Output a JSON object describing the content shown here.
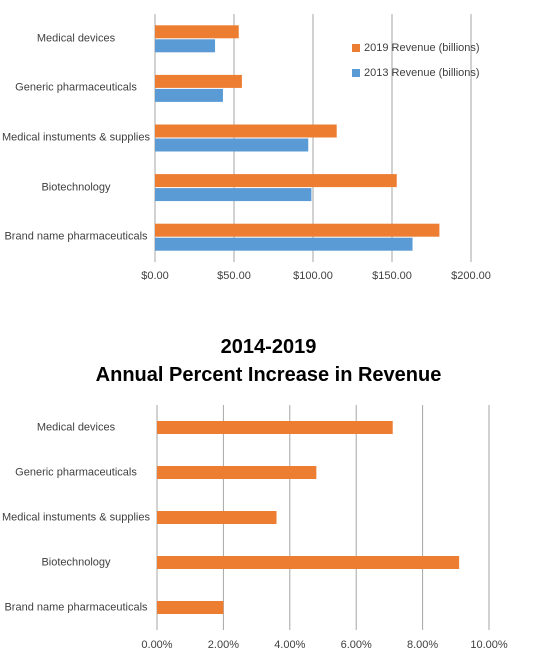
{
  "chart_data": [
    {
      "type": "hbar",
      "categories": [
        "Medical devices",
        "Generic pharmaceuticals",
        "Medical instuments & supplies",
        "Biotechnology",
        "Brand name pharmaceuticals"
      ],
      "series": [
        {
          "name": "2019 Revenue (billions)",
          "color": "#ed7d31",
          "values": [
            53,
            55,
            115,
            153,
            180
          ]
        },
        {
          "name": "2013 Revenue (billions)",
          "color": "#5b9bd5",
          "values": [
            38,
            43,
            97,
            99,
            163
          ]
        }
      ],
      "xlim": [
        0,
        200
      ],
      "xticks": [
        {
          "value": 0,
          "label": "$0.00"
        },
        {
          "value": 50,
          "label": "$50.00"
        },
        {
          "value": 100,
          "label": "$100.00"
        },
        {
          "value": 150,
          "label": "$150.00"
        },
        {
          "value": 200,
          "label": "$200.00"
        }
      ],
      "grid": true,
      "legend": "top-right"
    },
    {
      "type": "hbar",
      "title": "2014-2019\nAnnual Percent Increase in Revenue",
      "categories": [
        "Medical devices",
        "Generic pharmaceuticals",
        "Medical instuments & supplies",
        "Biotechnology",
        "Brand name pharmaceuticals"
      ],
      "series": [
        {
          "color": "#ed7d31",
          "values": [
            7.1,
            4.8,
            3.6,
            9.1,
            2.0
          ]
        }
      ],
      "xlim": [
        0,
        10
      ],
      "xticks": [
        {
          "value": 0,
          "label": "0.00%"
        },
        {
          "value": 2,
          "label": "2.00%"
        },
        {
          "value": 4,
          "label": "4.00%"
        },
        {
          "value": 6,
          "label": "6.00%"
        },
        {
          "value": 8,
          "label": "8.00%"
        },
        {
          "value": 10,
          "label": "10.00%"
        }
      ],
      "grid": true
    }
  ]
}
